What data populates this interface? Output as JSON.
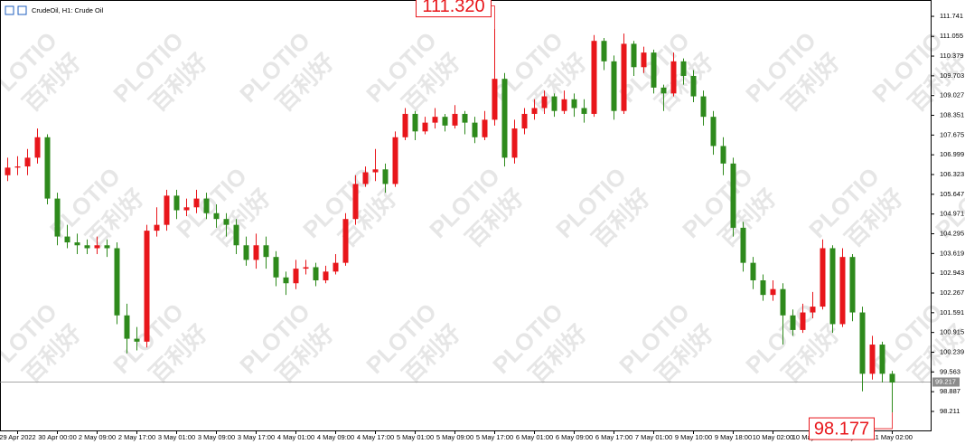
{
  "chart_data": {
    "type": "candlestick",
    "title": "CrudeOil, H1:  Crude Oil",
    "watermark": [
      "PLOTIO",
      "百利好"
    ],
    "categories": [
      null,
      "29 Apr 2022",
      null,
      null,
      null,
      "30 Apr 00:00",
      null,
      null,
      null,
      "2 May 09:00",
      null,
      null,
      null,
      "2 May 17:00",
      null,
      null,
      null,
      "3 May 01:00",
      null,
      null,
      null,
      "3 May 09:00",
      null,
      null,
      null,
      "3 May 17:00",
      null,
      null,
      null,
      "4 May 01:00",
      null,
      null,
      null,
      "4 May 09:00",
      null,
      null,
      null,
      "4 May 17:00",
      null,
      null,
      null,
      "5 May 01:00",
      null,
      null,
      null,
      "5 May 09:00",
      null,
      null,
      null,
      "5 May 17:00",
      null,
      null,
      null,
      "6 May 01:00",
      null,
      null,
      null,
      "6 May 09:00",
      null,
      null,
      null,
      "6 May 17:00",
      null,
      null,
      null,
      "7 May 01:00",
      null,
      null,
      null,
      "9 May 10:00",
      null,
      null,
      null,
      "9 May 18:00",
      null,
      null,
      null,
      "10 May 02:00",
      null,
      null,
      null,
      "10 May 10:00",
      null,
      null,
      null,
      "10 May 18:00",
      null,
      null,
      null,
      "11 May 02:00"
    ],
    "ohlc": [
      [
        106.3,
        106.9,
        106.1,
        106.56
      ],
      [
        106.56,
        106.95,
        106.3,
        106.6
      ],
      [
        106.6,
        107.2,
        106.3,
        106.9
      ],
      [
        106.9,
        107.9,
        106.7,
        107.6
      ],
      [
        107.6,
        107.7,
        105.3,
        105.5
      ],
      [
        105.5,
        105.7,
        103.9,
        104.2
      ],
      [
        104.2,
        104.6,
        103.8,
        104.0
      ],
      [
        104.0,
        104.3,
        103.6,
        103.9
      ],
      [
        103.9,
        104.1,
        103.6,
        103.8
      ],
      [
        103.8,
        104.2,
        103.6,
        103.9
      ],
      [
        103.9,
        104.1,
        103.5,
        103.8
      ],
      [
        103.8,
        104.0,
        101.2,
        101.5
      ],
      [
        101.5,
        101.9,
        100.2,
        100.7
      ],
      [
        100.7,
        101.1,
        100.3,
        100.6
      ],
      [
        100.6,
        104.6,
        100.4,
        104.4
      ],
      [
        104.4,
        105.2,
        104.2,
        104.6
      ],
      [
        104.6,
        105.8,
        104.4,
        105.6
      ],
      [
        105.6,
        105.8,
        104.8,
        105.1
      ],
      [
        105.1,
        105.5,
        104.9,
        105.2
      ],
      [
        105.2,
        105.8,
        105.0,
        105.5
      ],
      [
        105.5,
        105.7,
        104.8,
        105.0
      ],
      [
        105.0,
        105.3,
        104.5,
        104.8
      ],
      [
        104.8,
        105.0,
        104.2,
        104.6
      ],
      [
        104.6,
        104.8,
        103.6,
        103.9
      ],
      [
        103.9,
        104.2,
        103.2,
        103.4
      ],
      [
        103.4,
        104.3,
        103.1,
        103.9
      ],
      [
        103.9,
        104.2,
        103.1,
        103.5
      ],
      [
        103.5,
        103.7,
        102.5,
        102.8
      ],
      [
        102.8,
        103.0,
        102.2,
        102.6
      ],
      [
        102.6,
        103.4,
        102.4,
        103.1
      ],
      [
        103.1,
        103.4,
        102.9,
        103.15
      ],
      [
        103.15,
        103.3,
        102.5,
        102.7
      ],
      [
        102.7,
        103.2,
        102.6,
        103.0
      ],
      [
        103.0,
        103.6,
        102.9,
        103.3
      ],
      [
        103.3,
        105.0,
        103.2,
        104.8
      ],
      [
        104.8,
        106.3,
        104.6,
        106.0
      ],
      [
        106.0,
        106.6,
        105.9,
        106.4
      ],
      [
        106.4,
        107.2,
        106.1,
        106.5
      ],
      [
        106.5,
        106.7,
        105.7,
        106.0
      ],
      [
        106.0,
        107.8,
        105.9,
        107.6
      ],
      [
        107.6,
        108.6,
        107.5,
        108.4
      ],
      [
        108.4,
        108.5,
        107.5,
        107.8
      ],
      [
        107.8,
        108.3,
        107.7,
        108.1
      ],
      [
        108.1,
        108.6,
        107.9,
        108.3
      ],
      [
        108.3,
        108.4,
        107.8,
        108.0
      ],
      [
        108.0,
        108.7,
        107.9,
        108.4
      ],
      [
        108.4,
        108.5,
        107.7,
        108.1
      ],
      [
        108.1,
        108.3,
        107.4,
        107.6
      ],
      [
        107.6,
        108.5,
        107.5,
        108.2
      ],
      [
        108.2,
        111.32,
        108.0,
        109.6
      ],
      [
        109.6,
        109.8,
        106.6,
        106.9
      ],
      [
        106.9,
        108.2,
        106.7,
        107.9
      ],
      [
        107.9,
        108.6,
        107.7,
        108.4
      ],
      [
        108.4,
        108.9,
        108.2,
        108.6
      ],
      [
        108.6,
        109.2,
        108.4,
        109.0
      ],
      [
        109.0,
        109.1,
        108.3,
        108.5
      ],
      [
        108.5,
        109.2,
        108.4,
        108.9
      ],
      [
        108.9,
        109.1,
        108.3,
        108.6
      ],
      [
        108.6,
        108.9,
        108.1,
        108.4
      ],
      [
        108.4,
        111.1,
        108.3,
        110.9
      ],
      [
        110.9,
        111.0,
        109.9,
        110.2
      ],
      [
        110.2,
        110.4,
        108.2,
        108.5
      ],
      [
        108.5,
        111.15,
        108.4,
        110.8
      ],
      [
        110.8,
        110.9,
        109.7,
        110.0
      ],
      [
        110.0,
        110.7,
        109.8,
        110.5
      ],
      [
        110.5,
        110.6,
        109.1,
        109.3
      ],
      [
        109.3,
        109.4,
        108.5,
        109.1
      ],
      [
        109.1,
        110.5,
        109.0,
        110.2
      ],
      [
        110.2,
        110.3,
        109.4,
        109.7
      ],
      [
        109.7,
        109.9,
        108.8,
        109.0
      ],
      [
        109.0,
        109.2,
        108.0,
        108.3
      ],
      [
        108.3,
        108.5,
        107.0,
        107.3
      ],
      [
        107.3,
        107.6,
        106.3,
        106.7
      ],
      [
        106.7,
        106.9,
        104.2,
        104.5
      ],
      [
        104.5,
        104.7,
        103.0,
        103.3
      ],
      [
        103.3,
        103.5,
        102.4,
        102.7
      ],
      [
        102.7,
        102.9,
        102.0,
        102.2
      ],
      [
        102.2,
        102.7,
        102.0,
        102.4
      ],
      [
        102.4,
        102.6,
        100.5,
        101.5
      ],
      [
        101.5,
        101.7,
        100.8,
        101.0
      ],
      [
        101.0,
        101.9,
        100.9,
        101.6
      ],
      [
        101.6,
        102.3,
        101.4,
        101.8
      ],
      [
        101.8,
        104.1,
        101.7,
        103.8
      ],
      [
        103.8,
        103.9,
        100.9,
        101.2
      ],
      [
        101.2,
        103.8,
        101.1,
        103.5
      ],
      [
        103.5,
        103.6,
        101.3,
        101.6
      ],
      [
        101.6,
        101.8,
        98.9,
        99.5
      ],
      [
        99.5,
        100.8,
        99.3,
        100.5
      ],
      [
        100.5,
        100.6,
        99.2,
        99.5
      ],
      [
        99.5,
        99.6,
        98.177,
        99.2
      ]
    ],
    "up_color": "#e8161b",
    "down_color": "#2e8a1c",
    "ylim": [
      97.56,
      112.3
    ],
    "yticks": [
      111.741,
      111.055,
      110.379,
      109.703,
      109.027,
      108.351,
      107.675,
      106.999,
      106.323,
      105.647,
      104.971,
      104.295,
      103.619,
      102.943,
      102.267,
      101.591,
      100.915,
      100.239,
      99.563,
      98.887,
      98.211
    ],
    "last_price": 99.217,
    "annotations": [
      {
        "value": 111.32,
        "label": "111.320"
      },
      {
        "value": 98.177,
        "label": "98.177"
      }
    ]
  }
}
